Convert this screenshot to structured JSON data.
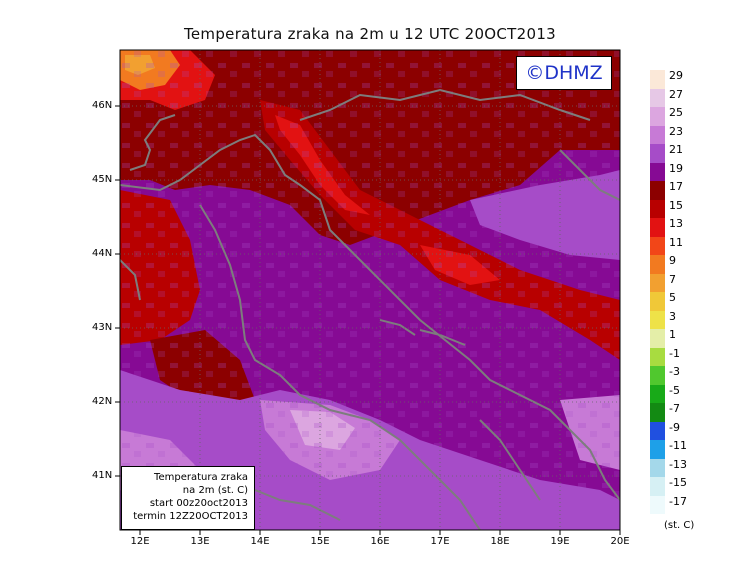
{
  "title": "Temperatura zraka na 2m u 12 UTC 20OCT2013",
  "copyright": "©DHMZ",
  "info": {
    "line1": "Temperatura zraka",
    "line2": "na 2m (st. C)",
    "line3": "start 00z20oct2013",
    "line4": "termin 12Z20OCT2013"
  },
  "lat_ticks": [
    "46N",
    "45N",
    "44N",
    "43N",
    "42N",
    "41N"
  ],
  "lon_ticks": [
    "12E",
    "13E",
    "14E",
    "15E",
    "16E",
    "17E",
    "18E",
    "19E",
    "20E"
  ],
  "legend": {
    "unit": "(st. C)",
    "labels": [
      "29",
      "27",
      "25",
      "23",
      "21",
      "19",
      "17",
      "15",
      "13",
      "11",
      "9",
      "7",
      "5",
      "3",
      "1",
      "-1",
      "-3",
      "-5",
      "-7",
      "-9",
      "-11",
      "-13",
      "-15",
      "-17"
    ],
    "colors": [
      "#fbe8d8",
      "#e6c8e6",
      "#dca6e0",
      "#c77ad6",
      "#a64cc8",
      "#860a94",
      "#8c0000",
      "#b80000",
      "#e21212",
      "#f24618",
      "#f27a20",
      "#f2a030",
      "#f0c838",
      "#eee248",
      "#e4eea8",
      "#a8dc40",
      "#50c82e",
      "#18aa18",
      "#138a13",
      "#2050e0",
      "#1ea0e8",
      "#a4d8ea",
      "#d6f0f4",
      "#eefafc"
    ]
  }
}
